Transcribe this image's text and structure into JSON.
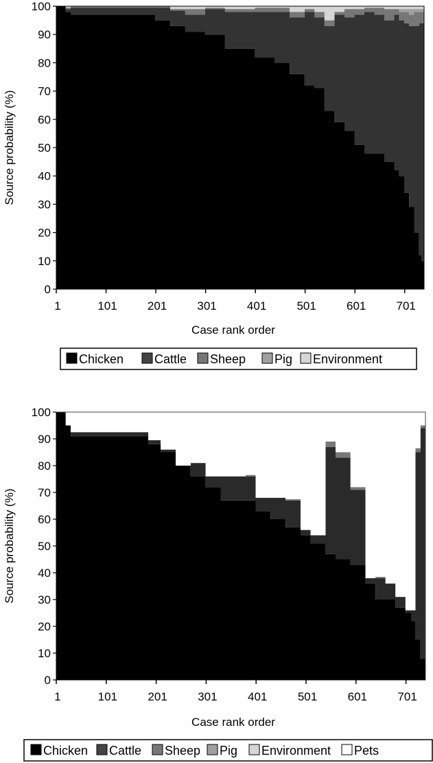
{
  "chart_data": [
    {
      "type": "area",
      "subtype": "stacked-100-percent-bar",
      "title": "",
      "xlabel": "Case rank order",
      "ylabel": "Source probability (%)",
      "ylim": [
        0,
        100
      ],
      "xlim": [
        1,
        740
      ],
      "yticks": [
        0,
        10,
        20,
        30,
        40,
        50,
        60,
        70,
        80,
        90,
        100
      ],
      "xticks": [
        1,
        101,
        201,
        301,
        401,
        501,
        601,
        701
      ],
      "grid": false,
      "legend_position": "bottom",
      "legend": [
        "Chicken",
        "Cattle",
        "Sheep",
        "Pig",
        "Environment"
      ],
      "colors": {
        "Chicken": "#000000",
        "Cattle": "#333333",
        "Sheep": "#777777",
        "Pig": "#a0a0a0",
        "Environment": "#d6d6d6"
      },
      "x": [
        1,
        20,
        30,
        160,
        200,
        230,
        260,
        300,
        340,
        400,
        440,
        470,
        500,
        520,
        540,
        560,
        580,
        600,
        620,
        640,
        660,
        680,
        690,
        700,
        710,
        720,
        730,
        735,
        740
      ],
      "series": [
        {
          "name": "Chicken",
          "values": [
            100,
            98,
            97,
            97,
            95,
            93,
            91,
            90,
            85,
            82,
            80,
            76,
            72,
            71,
            63,
            59,
            56,
            51,
            48,
            48,
            45,
            42,
            40,
            34,
            29,
            20,
            12,
            10,
            3
          ]
        },
        {
          "name": "Cattle",
          "values": [
            0,
            1,
            2.5,
            2.5,
            4.5,
            5.5,
            6,
            9,
            13,
            16,
            18,
            20,
            26,
            25,
            30,
            38,
            40,
            46,
            50,
            49,
            50,
            55,
            55,
            60,
            64,
            73,
            82,
            84,
            90
          ]
        },
        {
          "name": "Sheep",
          "values": [
            0,
            0.5,
            0.5,
            0.5,
            0.5,
            0.5,
            2,
            0.5,
            1,
            1.5,
            1.5,
            2,
            1,
            2,
            2,
            1,
            3,
            2,
            1.5,
            2.5,
            4,
            2,
            3,
            4,
            4,
            5,
            4,
            4,
            5
          ]
        },
        {
          "name": "Pig",
          "values": [
            0,
            0,
            0,
            0,
            0,
            0,
            0,
            0,
            0,
            0,
            0,
            0,
            0,
            0,
            0,
            0,
            0,
            0,
            0,
            0,
            0,
            0,
            1,
            1,
            2,
            1,
            1,
            1,
            1
          ]
        },
        {
          "name": "Environment",
          "values": [
            0,
            0.5,
            0,
            0,
            0,
            1,
            1,
            0.5,
            1,
            0.5,
            0.5,
            2,
            1,
            2,
            5,
            2,
            1,
            1,
            0.5,
            0.5,
            1,
            1,
            1,
            1,
            1,
            1,
            1,
            1,
            1
          ]
        }
      ]
    },
    {
      "type": "area",
      "subtype": "stacked-100-percent-bar",
      "title": "",
      "xlabel": "Case rank order",
      "ylabel": "Source probability (%)",
      "ylim": [
        0,
        100
      ],
      "xlim": [
        1,
        740
      ],
      "yticks": [
        0,
        10,
        20,
        30,
        40,
        50,
        60,
        70,
        80,
        90,
        100
      ],
      "xticks": [
        1,
        101,
        201,
        301,
        401,
        501,
        601,
        701
      ],
      "grid": false,
      "legend_position": "bottom",
      "legend": [
        "Chicken",
        "Cattle",
        "Sheep",
        "Pig",
        "Environment",
        "Pets"
      ],
      "colors": {
        "Chicken": "#000000",
        "Cattle": "#2a2a2a",
        "Sheep": "#777777",
        "Pig": "#a0a0a0",
        "Environment": "#d6d6d6",
        "Pets": "#ffffff"
      },
      "x": [
        1,
        20,
        30,
        160,
        185,
        210,
        240,
        270,
        300,
        330,
        380,
        400,
        430,
        460,
        490,
        510,
        540,
        560,
        590,
        610,
        620,
        640,
        660,
        680,
        700,
        712,
        720,
        730,
        740
      ],
      "series": [
        {
          "name": "Chicken",
          "values": [
            100,
            95,
            91,
            91,
            88,
            85,
            80,
            76,
            72,
            67,
            67,
            63,
            60,
            57,
            54,
            51,
            47,
            45,
            43,
            43,
            36,
            30,
            30,
            27,
            25,
            22,
            15,
            8,
            3
          ]
        },
        {
          "name": "Cattle",
          "values": [
            0,
            0,
            1.5,
            1.5,
            1.5,
            1,
            0,
            5,
            4,
            9,
            9,
            5,
            8,
            10,
            2,
            3,
            40,
            38,
            28,
            28,
            2,
            8,
            6,
            4,
            1,
            4,
            70,
            86,
            92
          ]
        },
        {
          "name": "Sheep",
          "values": [
            0,
            0,
            0,
            0,
            0,
            0,
            0,
            0,
            0,
            0,
            0.5,
            0,
            0,
            0.5,
            0,
            0,
            2,
            2,
            1,
            1,
            0,
            0.5,
            0,
            0,
            0,
            0,
            1.5,
            1,
            1
          ]
        },
        {
          "name": "Pig",
          "values": [
            0,
            0,
            0,
            0,
            0,
            0,
            0,
            0,
            0,
            0,
            0,
            0,
            0,
            0,
            0,
            0,
            0,
            0,
            0,
            0,
            0,
            0,
            0,
            0,
            0,
            0,
            0,
            0,
            0
          ]
        },
        {
          "name": "Environment",
          "values": [
            0,
            0,
            0,
            0,
            0,
            0,
            0,
            0,
            0,
            0,
            0,
            0,
            0,
            0,
            0,
            0,
            0,
            0,
            0,
            0,
            0,
            0,
            0,
            0,
            0,
            0,
            0,
            0,
            0
          ]
        },
        {
          "name": "Pets",
          "values": [
            0,
            5,
            7.5,
            7.5,
            10.5,
            14,
            20,
            19,
            24,
            24,
            23.5,
            32,
            32,
            32.5,
            44,
            46,
            11,
            15,
            28,
            28,
            62,
            61.5,
            64,
            69,
            74,
            74,
            13.5,
            5,
            4
          ]
        }
      ]
    }
  ],
  "charts": [
    {
      "ylabel": "Source probability (%)",
      "xlabel": "Case rank order",
      "yticks": [
        "0",
        "10",
        "20",
        "30",
        "40",
        "50",
        "60",
        "70",
        "80",
        "90",
        "100"
      ],
      "xticks": [
        "1",
        "101",
        "201",
        "301",
        "401",
        "501",
        "601",
        "701"
      ],
      "legend": [
        {
          "label": "Chicken",
          "color": "#000000"
        },
        {
          "label": "Cattle",
          "color": "#444444"
        },
        {
          "label": "Sheep",
          "color": "#777777"
        },
        {
          "label": "Pig",
          "color": "#a0a0a0"
        },
        {
          "label": "Environment",
          "color": "#d6d6d6"
        }
      ]
    },
    {
      "ylabel": "Source probability (%)",
      "xlabel": "Case rank order",
      "yticks": [
        "0",
        "10",
        "20",
        "30",
        "40",
        "50",
        "60",
        "70",
        "80",
        "90",
        "100"
      ],
      "xticks": [
        "1",
        "101",
        "201",
        "301",
        "401",
        "501",
        "601",
        "701"
      ],
      "legend": [
        {
          "label": "Chicken",
          "color": "#000000"
        },
        {
          "label": "Cattle",
          "color": "#444444"
        },
        {
          "label": "Sheep",
          "color": "#777777"
        },
        {
          "label": "Pig",
          "color": "#a0a0a0"
        },
        {
          "label": "Environment",
          "color": "#d6d6d6"
        },
        {
          "label": "Pets",
          "color": "#ffffff"
        }
      ]
    }
  ]
}
